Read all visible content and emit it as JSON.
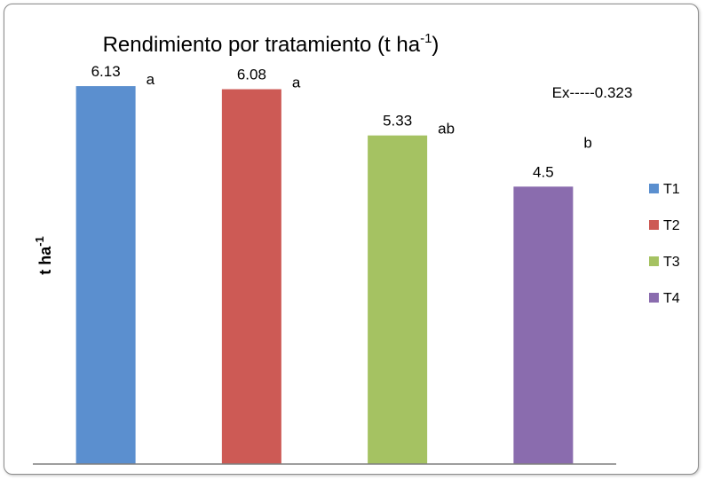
{
  "chart_data": {
    "type": "bar",
    "title": {
      "main": "Rendimiento por tratamiento (t ha",
      "sup": "-1",
      "close": ")"
    },
    "ylabel": {
      "main": "t ha",
      "sup": "-1"
    },
    "xlabel": "",
    "categories": [
      "T1",
      "T2",
      "T3",
      "T4"
    ],
    "values": [
      6.13,
      6.08,
      5.33,
      4.5
    ],
    "value_labels": [
      "6.13",
      "6.08",
      "5.33",
      "4.5"
    ],
    "significance_letters": [
      "a",
      "a",
      "ab",
      "b"
    ],
    "annotation": "Ex-----0.323",
    "ylim": [
      0,
      6.75
    ],
    "grid": false,
    "legend_position": "right",
    "colors": [
      "#5b8fcf",
      "#cd5a55",
      "#a5c262",
      "#8a6cae"
    ]
  }
}
